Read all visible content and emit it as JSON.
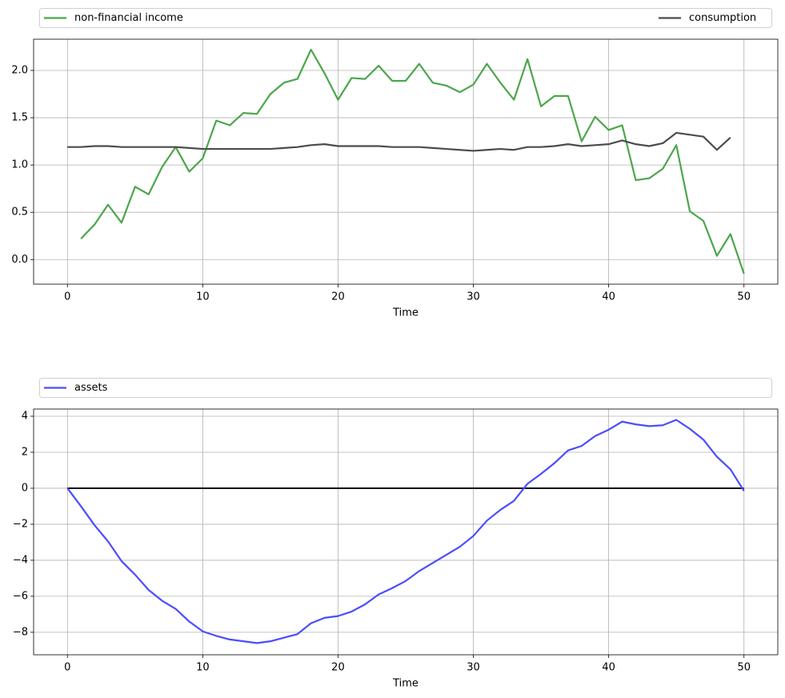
{
  "chart_data": [
    {
      "type": "line",
      "x_label": "Time",
      "x": [
        0,
        1,
        2,
        3,
        4,
        5,
        6,
        7,
        8,
        9,
        10,
        11,
        12,
        13,
        14,
        15,
        16,
        17,
        18,
        19,
        20,
        21,
        22,
        23,
        24,
        25,
        26,
        27,
        28,
        29,
        30,
        31,
        32,
        33,
        34,
        35,
        36,
        37,
        38,
        39,
        40,
        41,
        42,
        43,
        44,
        45,
        46,
        47,
        48,
        49,
        50
      ],
      "series": [
        {
          "name": "non-financial income",
          "color": "#4ca64c",
          "values": [
            null,
            0.22,
            0.37,
            0.58,
            0.39,
            0.77,
            0.69,
            0.98,
            1.19,
            0.93,
            1.07,
            1.47,
            1.42,
            1.55,
            1.54,
            1.75,
            1.87,
            1.91,
            2.22,
            1.97,
            1.69,
            1.92,
            1.91,
            2.05,
            1.89,
            1.89,
            2.07,
            1.87,
            1.84,
            1.77,
            1.85,
            2.07,
            1.87,
            1.69,
            2.12,
            1.62,
            1.73,
            1.73,
            1.25,
            1.51,
            1.37,
            1.42,
            0.84,
            0.86,
            0.96,
            1.21,
            0.51,
            0.41,
            0.04,
            0.27,
            -0.15
          ]
        },
        {
          "name": "consumption",
          "color": "#4c4c4c",
          "values": [
            1.19,
            1.19,
            1.2,
            1.2,
            1.19,
            1.19,
            1.19,
            1.19,
            1.19,
            1.18,
            1.17,
            1.17,
            1.17,
            1.17,
            1.17,
            1.17,
            1.18,
            1.19,
            1.21,
            1.22,
            1.2,
            1.2,
            1.2,
            1.2,
            1.19,
            1.19,
            1.19,
            1.18,
            1.17,
            1.16,
            1.15,
            1.16,
            1.17,
            1.16,
            1.19,
            1.19,
            1.2,
            1.22,
            1.2,
            1.21,
            1.22,
            1.26,
            1.22,
            1.2,
            1.23,
            1.34,
            1.32,
            1.3,
            1.16,
            1.29,
            null
          ]
        }
      ],
      "xlim": [
        -2.5,
        52.5
      ],
      "xticks": [
        0,
        10,
        20,
        30,
        40,
        50
      ],
      "ylim": [
        -0.26,
        2.33
      ],
      "yticks": [
        {
          "value": 0,
          "label": "0.0"
        },
        0.5,
        {
          "value": 1,
          "label": "1.0"
        },
        1.5,
        {
          "value": 2,
          "label": "2.0"
        }
      ],
      "grid": true,
      "legend": "above"
    },
    {
      "type": "line",
      "x_label": "Time",
      "x": [
        0,
        1,
        2,
        3,
        4,
        5,
        6,
        7,
        8,
        9,
        10,
        11,
        12,
        13,
        14,
        15,
        16,
        17,
        18,
        19,
        20,
        21,
        22,
        23,
        24,
        25,
        26,
        27,
        28,
        29,
        30,
        31,
        32,
        33,
        34,
        35,
        36,
        37,
        38,
        39,
        40,
        41,
        42,
        43,
        44,
        45,
        46,
        47,
        48,
        49,
        50
      ],
      "series": [
        {
          "name": "assets",
          "color": "#4c4cff",
          "values": [
            0,
            -1.0,
            -2.05,
            -2.95,
            -4.05,
            -4.8,
            -5.65,
            -6.25,
            -6.7,
            -7.4,
            -7.95,
            -8.2,
            -8.4,
            -8.5,
            -8.6,
            -8.5,
            -8.3,
            -8.1,
            -7.5,
            -7.2,
            -7.1,
            -6.85,
            -6.45,
            -5.9,
            -5.55,
            -5.15,
            -4.6,
            -4.15,
            -3.7,
            -3.25,
            -2.65,
            -1.8,
            -1.2,
            -0.7,
            0.25,
            0.8,
            1.4,
            2.1,
            2.35,
            2.9,
            3.25,
            3.7,
            3.55,
            3.45,
            3.5,
            3.8,
            3.3,
            2.7,
            1.75,
            1.05,
            -0.15
          ]
        }
      ],
      "hline": 0,
      "hline_color": "#000000",
      "xlim": [
        -2.5,
        52.5
      ],
      "xticks": [
        0,
        10,
        20,
        30,
        40,
        50
      ],
      "ylim": [
        -9.25,
        4.4
      ],
      "yticks": [
        {
          "value": -8,
          "label": "−8"
        },
        {
          "value": -6,
          "label": "−6"
        },
        {
          "value": -4,
          "label": "−4"
        },
        {
          "value": -2,
          "label": "−2"
        },
        0,
        2,
        4
      ],
      "grid": true,
      "legend": "above"
    }
  ]
}
